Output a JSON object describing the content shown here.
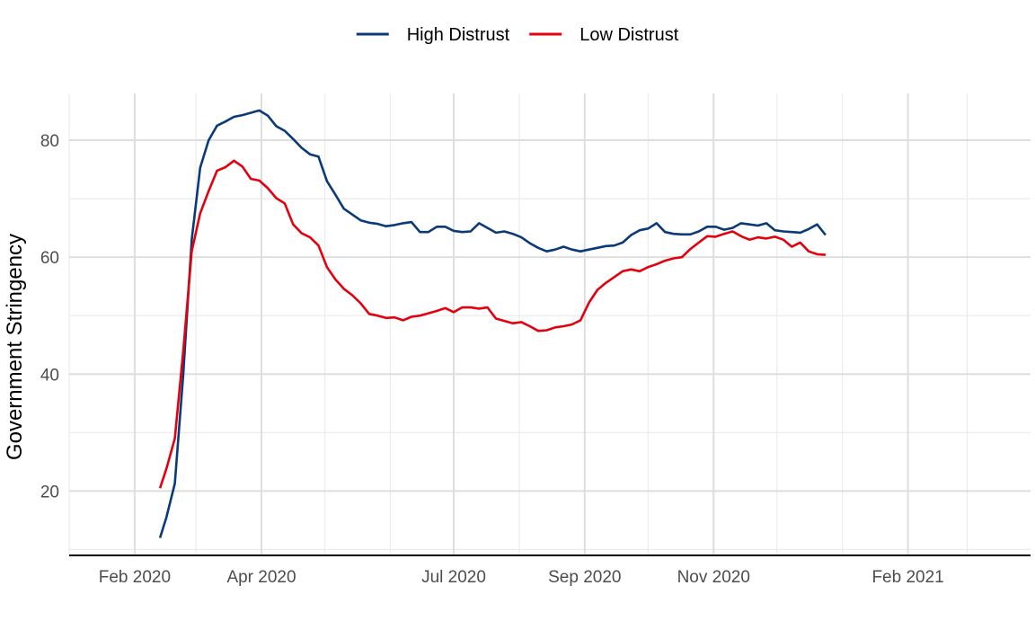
{
  "chart_data": {
    "type": "line",
    "title": "",
    "xlabel": "",
    "ylabel": "Government Stringency",
    "x_axis": {
      "type": "date",
      "range": [
        "2020-01-01",
        "2021-03-31"
      ],
      "major_ticks": [
        "2020-02-01",
        "2020-04-01",
        "2020-07-01",
        "2020-09-01",
        "2020-11-01",
        "2021-02-01"
      ],
      "tick_labels": [
        "Feb 2020",
        "Apr 2020",
        "Jul 2020",
        "Sep 2020",
        "Nov 2020",
        "Feb 2021"
      ],
      "minor_ticks": [
        "2020-01-01",
        "2020-03-01",
        "2020-05-01",
        "2020-06-01",
        "2020-08-01",
        "2020-10-01",
        "2020-12-01",
        "2021-01-01",
        "2021-03-01"
      ]
    },
    "y_axis": {
      "range": [
        9,
        88
      ],
      "major_ticks": [
        20,
        40,
        60,
        80
      ],
      "tick_labels": [
        "20",
        "40",
        "60",
        "80"
      ],
      "minor_ticks": [
        10,
        30,
        50,
        70
      ]
    },
    "grid": true,
    "legend": {
      "position": "top",
      "entries": [
        "High Distrust",
        "Low Distrust"
      ]
    },
    "series": [
      {
        "name": "High Distrust",
        "color": "#0b3a79",
        "points": [
          [
            "2020-02-13",
            12.0
          ],
          [
            "2020-02-16",
            15.5
          ],
          [
            "2020-02-20",
            21.3
          ],
          [
            "2020-02-24",
            40.0
          ],
          [
            "2020-02-28",
            63.0
          ],
          [
            "2020-03-03",
            75.3
          ],
          [
            "2020-03-07",
            80.0
          ],
          [
            "2020-03-11",
            82.5
          ],
          [
            "2020-03-15",
            83.2
          ],
          [
            "2020-03-19",
            84.0
          ],
          [
            "2020-03-23",
            84.3
          ],
          [
            "2020-03-27",
            84.7
          ],
          [
            "2020-03-31",
            85.1
          ],
          [
            "2020-04-04",
            84.2
          ],
          [
            "2020-04-08",
            82.4
          ],
          [
            "2020-04-12",
            81.6
          ],
          [
            "2020-04-16",
            80.2
          ],
          [
            "2020-04-20",
            78.7
          ],
          [
            "2020-04-24",
            77.6
          ],
          [
            "2020-04-28",
            77.2
          ],
          [
            "2020-05-02",
            73.0
          ],
          [
            "2020-05-06",
            70.7
          ],
          [
            "2020-05-10",
            68.3
          ],
          [
            "2020-05-14",
            67.3
          ],
          [
            "2020-05-18",
            66.3
          ],
          [
            "2020-05-22",
            65.9
          ],
          [
            "2020-05-26",
            65.7
          ],
          [
            "2020-05-30",
            65.3
          ],
          [
            "2020-06-03",
            65.5
          ],
          [
            "2020-06-07",
            65.8
          ],
          [
            "2020-06-11",
            66.0
          ],
          [
            "2020-06-15",
            64.3
          ],
          [
            "2020-06-19",
            64.3
          ],
          [
            "2020-06-23",
            65.2
          ],
          [
            "2020-06-27",
            65.2
          ],
          [
            "2020-07-01",
            64.5
          ],
          [
            "2020-07-05",
            64.3
          ],
          [
            "2020-07-09",
            64.4
          ],
          [
            "2020-07-13",
            65.8
          ],
          [
            "2020-07-17",
            65.0
          ],
          [
            "2020-07-21",
            64.2
          ],
          [
            "2020-07-25",
            64.4
          ],
          [
            "2020-07-29",
            64.0
          ],
          [
            "2020-08-02",
            63.4
          ],
          [
            "2020-08-06",
            62.4
          ],
          [
            "2020-08-10",
            61.6
          ],
          [
            "2020-08-14",
            61.0
          ],
          [
            "2020-08-18",
            61.3
          ],
          [
            "2020-08-22",
            61.8
          ],
          [
            "2020-08-26",
            61.3
          ],
          [
            "2020-08-30",
            61.0
          ],
          [
            "2020-09-03",
            61.3
          ],
          [
            "2020-09-07",
            61.6
          ],
          [
            "2020-09-11",
            61.9
          ],
          [
            "2020-09-15",
            62.0
          ],
          [
            "2020-09-19",
            62.5
          ],
          [
            "2020-09-23",
            63.8
          ],
          [
            "2020-09-27",
            64.6
          ],
          [
            "2020-10-01",
            64.9
          ],
          [
            "2020-10-05",
            65.8
          ],
          [
            "2020-10-09",
            64.3
          ],
          [
            "2020-10-13",
            64.0
          ],
          [
            "2020-10-17",
            63.9
          ],
          [
            "2020-10-21",
            63.9
          ],
          [
            "2020-10-25",
            64.4
          ],
          [
            "2020-10-29",
            65.2
          ],
          [
            "2020-11-02",
            65.2
          ],
          [
            "2020-11-06",
            64.7
          ],
          [
            "2020-11-10",
            65.0
          ],
          [
            "2020-11-14",
            65.8
          ],
          [
            "2020-11-18",
            65.6
          ],
          [
            "2020-11-22",
            65.4
          ],
          [
            "2020-11-26",
            65.8
          ],
          [
            "2020-11-30",
            64.6
          ],
          [
            "2020-12-04",
            64.4
          ],
          [
            "2020-12-08",
            64.3
          ],
          [
            "2020-12-12",
            64.2
          ],
          [
            "2020-12-16",
            64.8
          ],
          [
            "2020-12-20",
            65.6
          ],
          [
            "2020-12-24",
            63.8
          ]
        ]
      },
      {
        "name": "Low Distrust",
        "color": "#e3000f",
        "points": [
          [
            "2020-02-13",
            20.5
          ],
          [
            "2020-02-16",
            23.8
          ],
          [
            "2020-02-20",
            29.0
          ],
          [
            "2020-02-24",
            44.0
          ],
          [
            "2020-02-28",
            61.0
          ],
          [
            "2020-03-03",
            67.5
          ],
          [
            "2020-03-07",
            71.3
          ],
          [
            "2020-03-11",
            74.8
          ],
          [
            "2020-03-15",
            75.4
          ],
          [
            "2020-03-19",
            76.5
          ],
          [
            "2020-03-23",
            75.5
          ],
          [
            "2020-03-27",
            73.4
          ],
          [
            "2020-03-31",
            73.1
          ],
          [
            "2020-04-04",
            71.8
          ],
          [
            "2020-04-08",
            70.1
          ],
          [
            "2020-04-12",
            69.2
          ],
          [
            "2020-04-16",
            65.6
          ],
          [
            "2020-04-20",
            64.1
          ],
          [
            "2020-04-24",
            63.4
          ],
          [
            "2020-04-28",
            62.0
          ],
          [
            "2020-05-02",
            58.3
          ],
          [
            "2020-05-06",
            56.2
          ],
          [
            "2020-05-10",
            54.6
          ],
          [
            "2020-05-14",
            53.5
          ],
          [
            "2020-05-18",
            52.1
          ],
          [
            "2020-05-22",
            50.3
          ],
          [
            "2020-05-26",
            50.0
          ],
          [
            "2020-05-30",
            49.6
          ],
          [
            "2020-06-03",
            49.7
          ],
          [
            "2020-06-07",
            49.2
          ],
          [
            "2020-06-11",
            49.8
          ],
          [
            "2020-06-15",
            50.0
          ],
          [
            "2020-06-19",
            50.4
          ],
          [
            "2020-06-23",
            50.8
          ],
          [
            "2020-06-27",
            51.3
          ],
          [
            "2020-07-01",
            50.6
          ],
          [
            "2020-07-05",
            51.4
          ],
          [
            "2020-07-09",
            51.4
          ],
          [
            "2020-07-13",
            51.2
          ],
          [
            "2020-07-17",
            51.4
          ],
          [
            "2020-07-21",
            49.5
          ],
          [
            "2020-07-25",
            49.1
          ],
          [
            "2020-07-29",
            48.7
          ],
          [
            "2020-08-02",
            48.9
          ],
          [
            "2020-08-06",
            48.2
          ],
          [
            "2020-08-10",
            47.4
          ],
          [
            "2020-08-14",
            47.5
          ],
          [
            "2020-08-18",
            48.0
          ],
          [
            "2020-08-22",
            48.2
          ],
          [
            "2020-08-26",
            48.5
          ],
          [
            "2020-08-30",
            49.2
          ],
          [
            "2020-09-03",
            52.2
          ],
          [
            "2020-09-07",
            54.4
          ],
          [
            "2020-09-11",
            55.6
          ],
          [
            "2020-09-15",
            56.6
          ],
          [
            "2020-09-19",
            57.6
          ],
          [
            "2020-09-23",
            57.9
          ],
          [
            "2020-09-27",
            57.6
          ],
          [
            "2020-10-01",
            58.3
          ],
          [
            "2020-10-05",
            58.8
          ],
          [
            "2020-10-09",
            59.4
          ],
          [
            "2020-10-13",
            59.8
          ],
          [
            "2020-10-17",
            60.0
          ],
          [
            "2020-10-21",
            61.4
          ],
          [
            "2020-10-25",
            62.5
          ],
          [
            "2020-10-29",
            63.6
          ],
          [
            "2020-11-02",
            63.5
          ],
          [
            "2020-11-06",
            64.0
          ],
          [
            "2020-11-10",
            64.4
          ],
          [
            "2020-11-14",
            63.6
          ],
          [
            "2020-11-18",
            63.0
          ],
          [
            "2020-11-22",
            63.4
          ],
          [
            "2020-11-26",
            63.2
          ],
          [
            "2020-11-30",
            63.5
          ],
          [
            "2020-12-04",
            63.0
          ],
          [
            "2020-12-08",
            61.8
          ],
          [
            "2020-12-12",
            62.5
          ],
          [
            "2020-12-16",
            61.0
          ],
          [
            "2020-12-20",
            60.5
          ],
          [
            "2020-12-24",
            60.4
          ]
        ]
      }
    ]
  }
}
